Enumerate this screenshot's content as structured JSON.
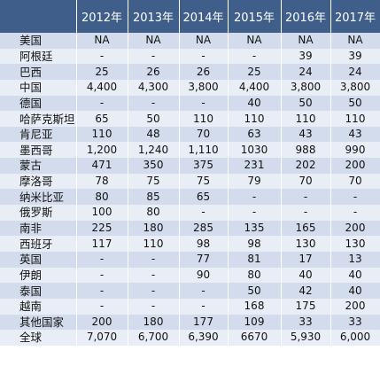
{
  "table": {
    "headers": [
      "",
      "2012年",
      "2013年",
      "2014年",
      "2015年",
      "2016年",
      "2017年"
    ],
    "rows": [
      [
        "美国",
        "NA",
        "NA",
        "NA",
        "NA",
        "NA",
        "NA"
      ],
      [
        "阿根廷",
        "-",
        "-",
        "-",
        "-",
        "39",
        "39"
      ],
      [
        "巴西",
        "25",
        "26",
        "26",
        "25",
        "24",
        "24"
      ],
      [
        "中国",
        "4,400",
        "4,300",
        "3,800",
        "4,400",
        "3,800",
        "3,800"
      ],
      [
        "德国",
        "-",
        "-",
        "-",
        "40",
        "50",
        "50"
      ],
      [
        "哈萨克斯坦",
        "65",
        "50",
        "110",
        "110",
        "110",
        "110"
      ],
      [
        "肯尼亚",
        "110",
        "48",
        "70",
        "63",
        "43",
        "43"
      ],
      [
        "墨西哥",
        "1,200",
        "1,240",
        "1,110",
        "1030",
        "988",
        "990"
      ],
      [
        "蒙古",
        "471",
        "350",
        "375",
        "231",
        "202",
        "200"
      ],
      [
        "摩洛哥",
        "78",
        "75",
        "75",
        "79",
        "70",
        "70"
      ],
      [
        "纳米比亚",
        "80",
        "85",
        "65",
        "-",
        "-",
        "-"
      ],
      [
        "俄罗斯",
        "100",
        "80",
        "-",
        "-",
        "-",
        "-"
      ],
      [
        "南非",
        "225",
        "180",
        "285",
        "135",
        "165",
        "200"
      ],
      [
        "西班牙",
        "117",
        "110",
        "98",
        "98",
        "130",
        "130"
      ],
      [
        "英国",
        "-",
        "-",
        "77",
        "81",
        "17",
        "13"
      ],
      [
        "伊朗",
        "-",
        "-",
        "90",
        "80",
        "40",
        "40"
      ],
      [
        "泰国",
        "-",
        "-",
        "-",
        "50",
        "42",
        "40"
      ],
      [
        "越南",
        "-",
        "-",
        "-",
        "168",
        "175",
        "200"
      ],
      [
        "其他国家",
        "200",
        "180",
        "177",
        "109",
        "33",
        "33"
      ],
      [
        "全球",
        "7,070",
        "6,700",
        "6,390",
        "6670",
        "5,930",
        "6,000"
      ]
    ]
  }
}
